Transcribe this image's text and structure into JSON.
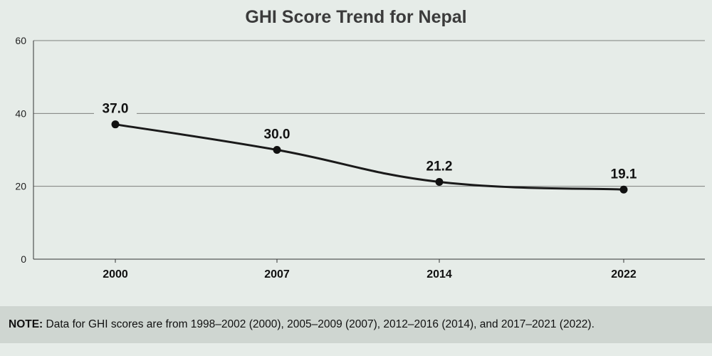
{
  "chart_data": {
    "type": "line",
    "title": "GHI Score Trend for Nepal",
    "categories": [
      "2000",
      "2007",
      "2014",
      "2022"
    ],
    "series": [
      {
        "values": [
          37.0,
          30.0,
          21.2,
          19.1
        ]
      }
    ],
    "data_labels": [
      "37.0",
      "30.0",
      "21.2",
      "19.1"
    ],
    "y_ticks": [
      "0",
      "20",
      "40",
      "60"
    ],
    "ylim": [
      0,
      60
    ],
    "grid": true,
    "line_color": "#1a1a1a",
    "background_color": "#e6ece8"
  },
  "note": {
    "label": "NOTE:",
    "text": "Data for GHI scores are from 1998–2002 (2000), 2005–2009 (2007), 2012–2016 (2014), and 2017–2021 (2022).",
    "background_color": "#cfd6d1"
  }
}
